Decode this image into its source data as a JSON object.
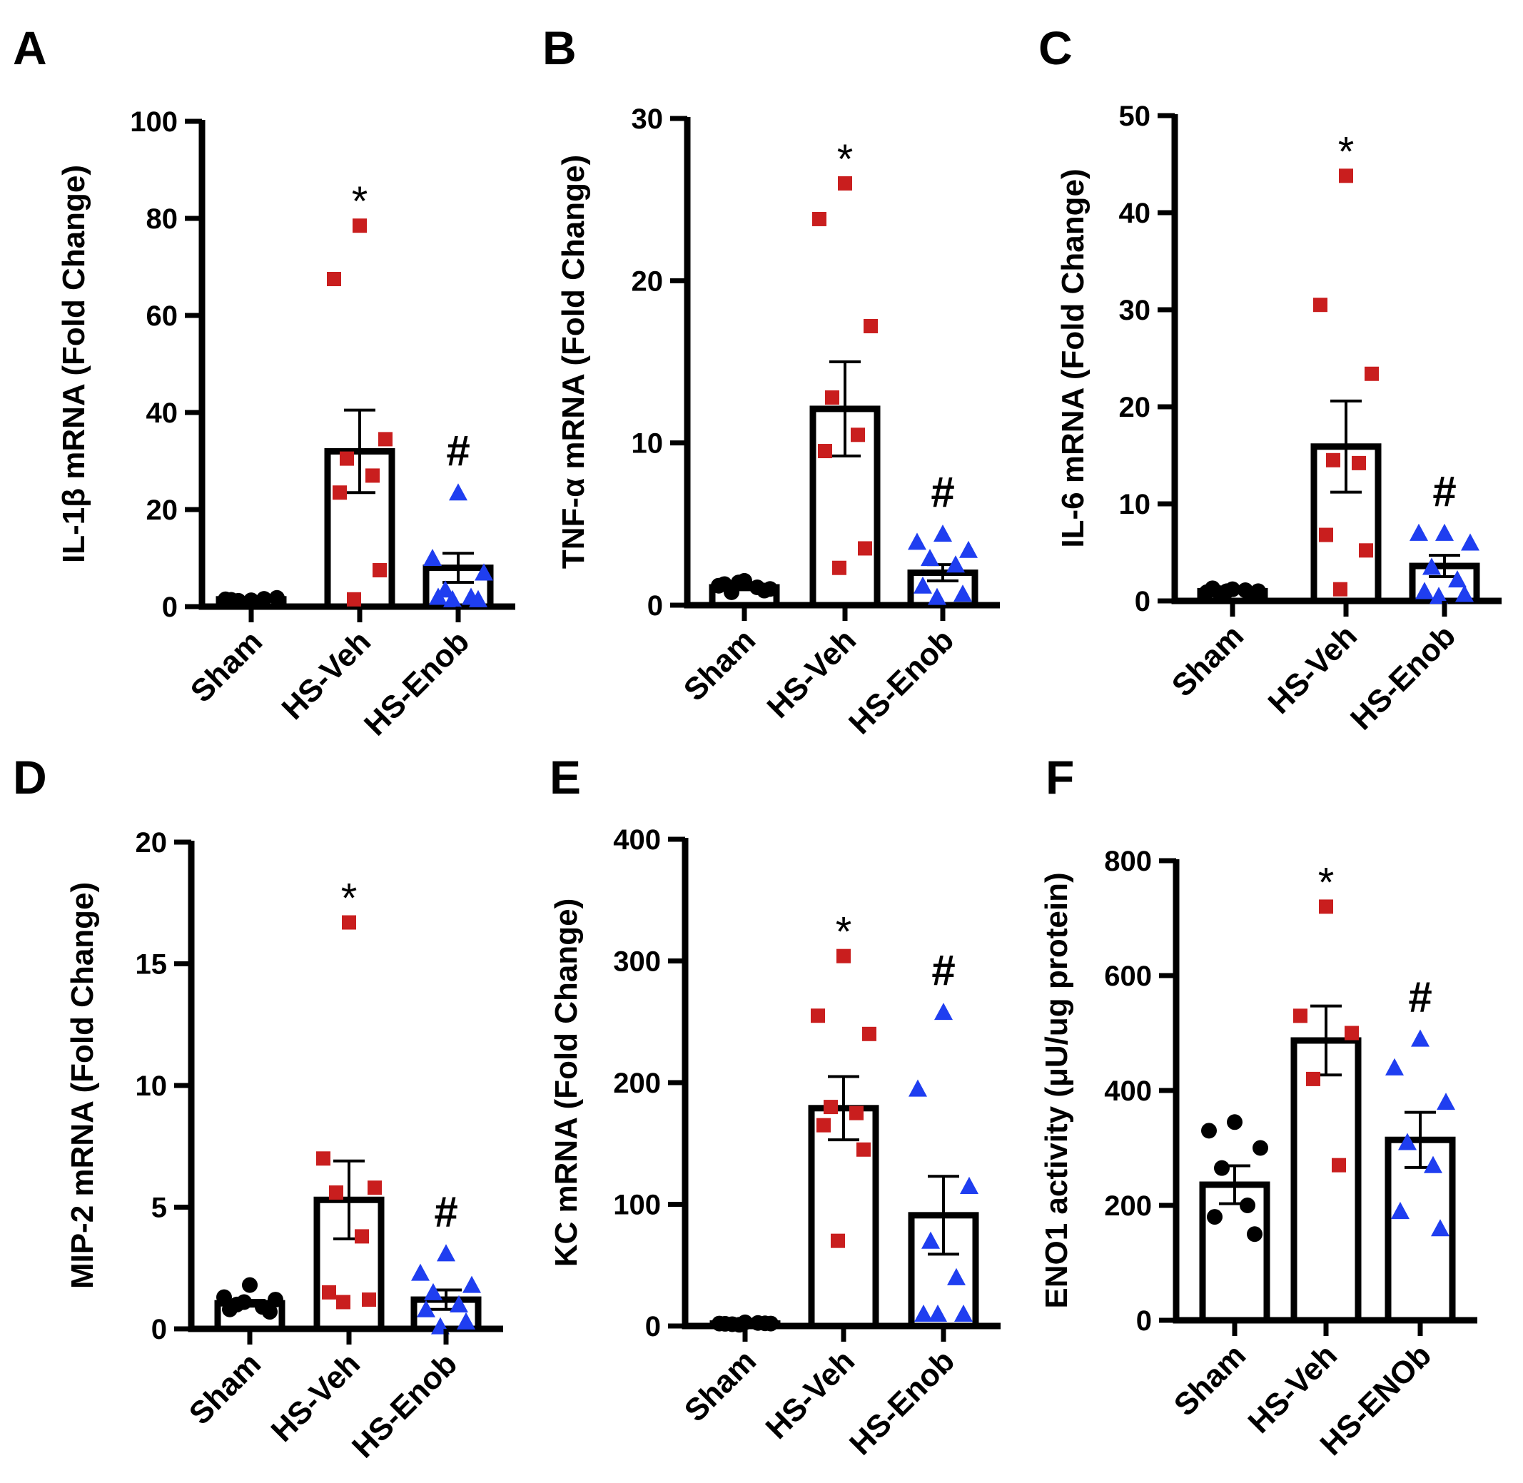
{
  "colors": {
    "axis": "#000000",
    "sham": "#000000",
    "hs_veh": "#c91e1e",
    "hs_enob": "#1f3ef0"
  },
  "chart_data": [
    {
      "panel": "A",
      "type": "bar",
      "ylabel": "IL-1β mRNA (Fold Change)",
      "categories": [
        "Sham",
        "HS-Veh",
        "HS-Enob"
      ],
      "ylim": [
        0,
        100
      ],
      "yticks": [
        0,
        20,
        40,
        60,
        80,
        100
      ],
      "means": [
        1.5,
        32,
        8
      ],
      "sem": [
        0.3,
        8.5,
        3
      ],
      "points": [
        [
          1.3,
          1.5,
          1.8,
          1.2,
          1.6,
          1.4
        ],
        [
          78.5,
          67.5,
          34.5,
          30.5,
          27,
          23.5,
          7.5,
          1.5
        ],
        [
          23.5,
          10,
          7,
          3.5,
          2,
          2,
          1.5,
          1.5
        ]
      ],
      "annotations": [
        "",
        "*",
        "#"
      ]
    },
    {
      "panel": "B",
      "type": "bar",
      "ylabel": "TNF-α mRNA (Fold Change)",
      "categories": [
        "Sham",
        "HS-Veh",
        "HS-Enob"
      ],
      "ylim": [
        0,
        30
      ],
      "yticks": [
        0,
        10,
        20,
        30
      ],
      "means": [
        1.1,
        12.1,
        2
      ],
      "sem": [
        0.15,
        2.9,
        0.5
      ],
      "points": [
        [
          1.5,
          1.2,
          1,
          0.8,
          1.1,
          1.3,
          0.9,
          1.4
        ],
        [
          26,
          23.8,
          17.2,
          12.8,
          10.5,
          9.5,
          3.5,
          2.3
        ],
        [
          4.4,
          3.9,
          3.4,
          2.9,
          2.5,
          1.2,
          0.7,
          0.5
        ]
      ],
      "annotations": [
        "",
        "*",
        "#"
      ]
    },
    {
      "panel": "C",
      "type": "bar",
      "ylabel": "IL-6 mRNA (Fold Change)",
      "categories": [
        "Sham",
        "HS-Veh",
        "HS-Enob"
      ],
      "ylim": [
        0,
        50
      ],
      "yticks": [
        0,
        10,
        20,
        30,
        40,
        50
      ],
      "means": [
        1,
        15.9,
        3.6
      ],
      "sem": [
        0.15,
        4.7,
        1.1
      ],
      "points": [
        [
          1.2,
          0.9,
          1,
          0.8,
          1.1,
          1.3,
          0.7,
          1
        ],
        [
          43.8,
          30.5,
          23.4,
          14.5,
          14.2,
          6.8,
          5.2,
          1.2
        ],
        [
          7,
          7,
          6,
          3.5,
          2.2,
          1,
          0.7,
          0.5
        ]
      ],
      "annotations": [
        "",
        "*",
        "#"
      ]
    },
    {
      "panel": "D",
      "type": "bar",
      "ylabel": "MIP-2 mRNA (Fold Change)",
      "categories": [
        "Sham",
        "HS-Veh",
        "HS-Enob"
      ],
      "ylim": [
        0,
        20
      ],
      "yticks": [
        0,
        5,
        10,
        15,
        20
      ],
      "means": [
        1.05,
        5.3,
        1.2
      ],
      "sem": [
        0.12,
        1.6,
        0.4
      ],
      "points": [
        [
          1.8,
          1.3,
          1.2,
          1,
          0.9,
          0.8,
          0.7,
          1.1
        ],
        [
          16.7,
          7,
          5.8,
          5.6,
          3.8,
          1.5,
          1.2,
          1.1
        ],
        [
          3.1,
          2.3,
          1.8,
          1.5,
          1,
          0.8,
          0.3,
          0.1
        ]
      ],
      "annotations": [
        "",
        "*",
        "#"
      ]
    },
    {
      "panel": "E",
      "type": "bar",
      "ylabel": "KC mRNA (Fold Change)",
      "categories": [
        "Sham",
        "HS-Veh",
        "HS-Enob"
      ],
      "ylim": [
        0,
        400
      ],
      "yticks": [
        0,
        100,
        200,
        300,
        400
      ],
      "means": [
        2,
        179,
        91
      ],
      "sem": [
        0.5,
        26,
        32
      ],
      "points": [
        [
          3,
          2,
          2,
          1.5,
          2.5,
          1.8,
          2.2,
          1
        ],
        [
          304,
          255,
          240,
          180,
          175,
          165,
          145,
          70
        ],
        [
          258,
          195,
          115,
          70,
          40,
          10,
          10,
          10
        ]
      ],
      "annotations": [
        "",
        "*",
        "#"
      ]
    },
    {
      "panel": "F",
      "type": "bar",
      "ylabel": "ENO1 activity (μU/ug protein)",
      "categories": [
        "Sham",
        "HS-Veh",
        "HS-ENOb"
      ],
      "ylim": [
        0,
        800
      ],
      "yticks": [
        0,
        200,
        400,
        600,
        800
      ],
      "means": [
        236,
        487,
        314
      ],
      "sem": [
        33,
        60,
        48
      ],
      "points": [
        [
          345,
          330,
          300,
          265,
          200,
          180,
          150
        ],
        [
          720,
          530,
          500,
          420,
          270
        ],
        [
          490,
          440,
          380,
          310,
          270,
          190,
          160
        ]
      ],
      "annotations": [
        "",
        "*",
        "#"
      ]
    }
  ]
}
